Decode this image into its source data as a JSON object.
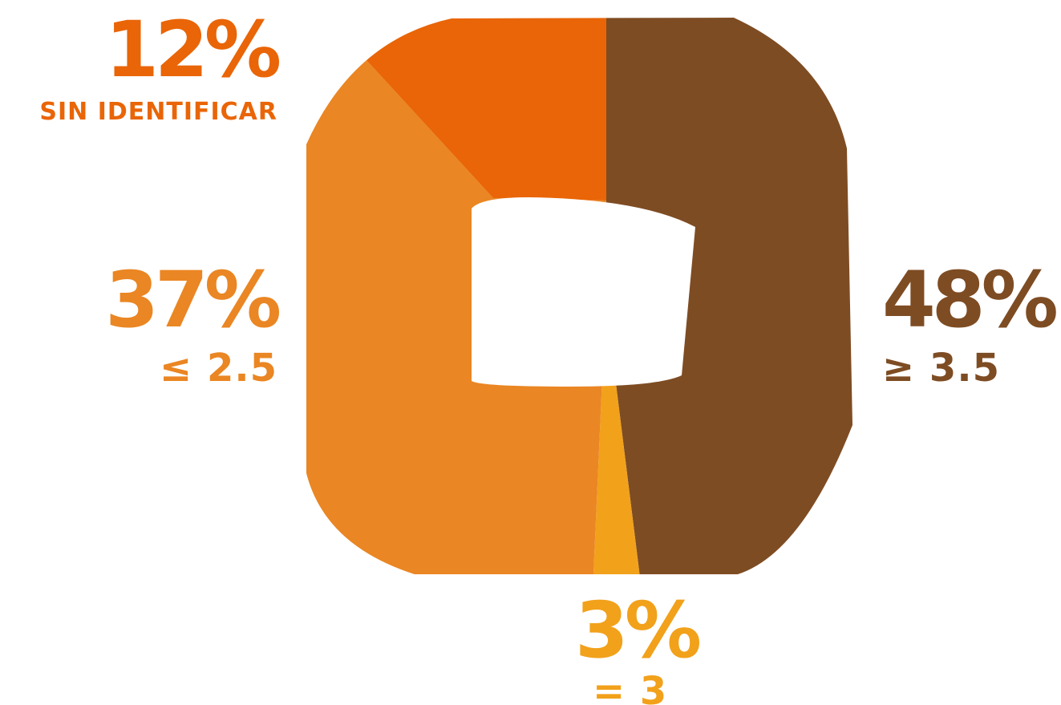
{
  "chart_data": {
    "type": "pie",
    "title": "",
    "legend": "none",
    "slices": [
      {
        "value": 48,
        "percent_label": "48%",
        "category_label": "≥ 3.5",
        "color": "#7E4C23"
      },
      {
        "value": 3,
        "percent_label": "3%",
        "category_label": "= 3",
        "color": "#F2A11B"
      },
      {
        "value": 37,
        "percent_label": "37%",
        "category_label": "≤ 2.5",
        "color": "#EA8623"
      },
      {
        "value": 12,
        "percent_label": "12%",
        "category_label": "SIN IDENTIFICAR",
        "color": "#E96507"
      }
    ]
  }
}
